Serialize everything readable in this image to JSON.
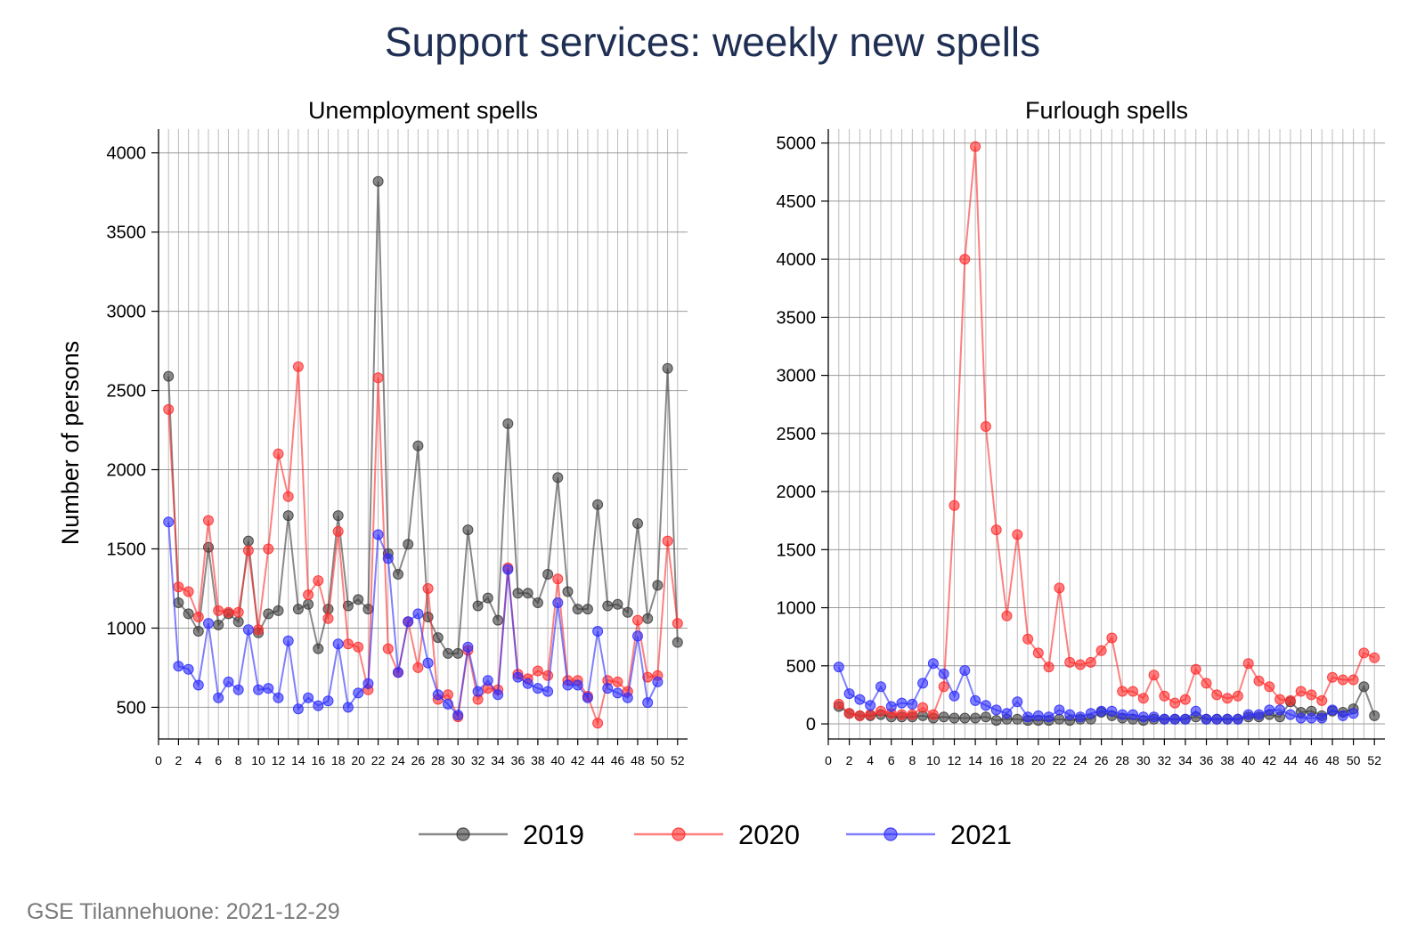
{
  "title": "Support services: weekly new spells",
  "footer": "GSE Tilannehuone: 2021-12-29",
  "colors": {
    "2019": "#3a3a3a",
    "2020": "#ff2a2a",
    "2021": "#2a2aff"
  },
  "legend": [
    "2019",
    "2020",
    "2021"
  ],
  "chart_data": [
    {
      "type": "line",
      "title": "Unemployment spells",
      "ylabel": "Number of persons",
      "xlabel": "",
      "xlim": [
        0,
        53
      ],
      "ylim": [
        300,
        4150
      ],
      "xticks": [
        0,
        2,
        4,
        6,
        8,
        10,
        12,
        14,
        16,
        18,
        20,
        22,
        24,
        26,
        28,
        30,
        32,
        34,
        36,
        38,
        40,
        42,
        44,
        46,
        48,
        50,
        52
      ],
      "yticks": [
        500,
        1000,
        1500,
        2000,
        2500,
        3000,
        3500,
        4000
      ],
      "grid": true,
      "series": [
        {
          "name": "2019",
          "x_start": 1,
          "values": [
            2590,
            1160,
            1090,
            980,
            1510,
            1020,
            1090,
            1040,
            1550,
            970,
            1090,
            1110,
            1710,
            1120,
            1150,
            870,
            1120,
            1710,
            1140,
            1180,
            1120,
            3820,
            1470,
            1340,
            1530,
            2150,
            1070,
            940,
            840,
            840,
            1620,
            1140,
            1190,
            1050,
            2290,
            1220,
            1220,
            1160,
            1340,
            1950,
            1230,
            1120,
            1120,
            1780,
            1140,
            1150,
            1100,
            1660,
            1060,
            1270,
            2640,
            910
          ]
        },
        {
          "name": "2020",
          "x_start": 1,
          "values": [
            2380,
            1260,
            1230,
            1070,
            1680,
            1110,
            1100,
            1100,
            1490,
            990,
            1500,
            2100,
            1830,
            2650,
            1210,
            1300,
            1060,
            1610,
            900,
            880,
            610,
            2580,
            870,
            720,
            1040,
            750,
            1250,
            550,
            580,
            440,
            860,
            550,
            620,
            610,
            1380,
            710,
            680,
            730,
            700,
            1310,
            670,
            670,
            570,
            400,
            670,
            660,
            600,
            1050,
            690,
            700,
            1550,
            1030
          ]
        },
        {
          "name": "2021",
          "x_start": 1,
          "values": [
            1670,
            760,
            740,
            640,
            1030,
            560,
            660,
            610,
            990,
            610,
            620,
            560,
            920,
            490,
            560,
            510,
            540,
            900,
            500,
            590,
            650,
            1590,
            1440,
            720,
            1040,
            1090,
            780,
            580,
            520,
            450,
            880,
            600,
            670,
            580,
            1370,
            690,
            650,
            620,
            600,
            1160,
            640,
            640,
            560,
            980,
            620,
            590,
            560,
            950,
            530,
            660
          ]
        }
      ]
    },
    {
      "type": "line",
      "title": "Furlough spells",
      "ylabel": "",
      "xlabel": "",
      "xlim": [
        0,
        53
      ],
      "ylim": [
        -130,
        5120
      ],
      "xticks": [
        0,
        2,
        4,
        6,
        8,
        10,
        12,
        14,
        16,
        18,
        20,
        22,
        24,
        26,
        28,
        30,
        32,
        34,
        36,
        38,
        40,
        42,
        44,
        46,
        48,
        50,
        52
      ],
      "yticks": [
        0,
        500,
        1000,
        1500,
        2000,
        2500,
        3000,
        3500,
        4000,
        4500,
        5000
      ],
      "grid": true,
      "series": [
        {
          "name": "2019",
          "x_start": 1,
          "values": [
            150,
            90,
            70,
            70,
            80,
            60,
            60,
            60,
            70,
            50,
            60,
            50,
            50,
            50,
            60,
            30,
            40,
            40,
            30,
            30,
            30,
            40,
            30,
            40,
            40,
            100,
            70,
            50,
            40,
            30,
            40,
            40,
            40,
            40,
            60,
            40,
            40,
            40,
            40,
            60,
            60,
            80,
            60,
            190,
            100,
            110,
            70,
            110,
            100,
            130,
            320,
            70
          ]
        },
        {
          "name": "2020",
          "x_start": 1,
          "values": [
            170,
            90,
            70,
            80,
            110,
            90,
            80,
            80,
            140,
            80,
            320,
            1880,
            4000,
            4970,
            2560,
            1670,
            930,
            1630,
            730,
            610,
            490,
            1170,
            530,
            510,
            530,
            630,
            740,
            280,
            280,
            220,
            420,
            240,
            180,
            210,
            470,
            350,
            250,
            220,
            240,
            520,
            370,
            320,
            210,
            200,
            280,
            250,
            200,
            400,
            380,
            380,
            610,
            570
          ]
        },
        {
          "name": "2021",
          "x_start": 1,
          "values": [
            490,
            260,
            210,
            160,
            320,
            150,
            180,
            170,
            350,
            520,
            430,
            240,
            460,
            200,
            160,
            120,
            90,
            190,
            60,
            70,
            60,
            120,
            80,
            60,
            90,
            110,
            110,
            80,
            80,
            60,
            60,
            40,
            40,
            40,
            110,
            40,
            40,
            40,
            40,
            80,
            80,
            120,
            120,
            80,
            50,
            50,
            50,
            120,
            70,
            90
          ]
        }
      ]
    }
  ]
}
